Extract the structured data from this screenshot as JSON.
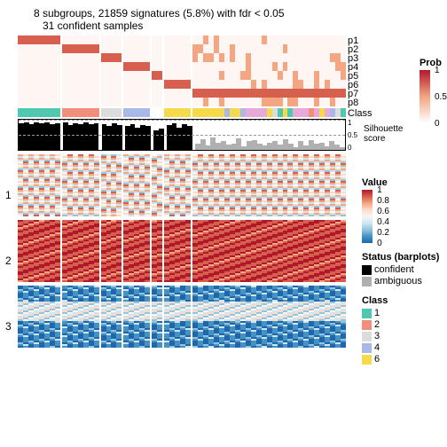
{
  "title": {
    "line1": "8 subgroups, 21859 signatures (5.8%) with fdr < 0.05",
    "line2": "31 confident samples"
  },
  "prob_rows": [
    "p1",
    "p2",
    "p3",
    "p4",
    "p5",
    "p6",
    "p7",
    "p8"
  ],
  "class_label": "Class",
  "silhouette_label": "Silhouette\nscore",
  "silhouette_ticks": [
    "1",
    "0.5",
    "0"
  ],
  "sections": [
    "1",
    "2",
    "3"
  ],
  "groups": [
    {
      "n": 8,
      "class_color": "#4ec9b0",
      "sil_color": "#000000",
      "sil_heights": [
        0.88,
        0.92,
        0.85,
        0.9,
        0.87,
        0.91,
        0.86,
        0.89
      ]
    },
    {
      "n": 7,
      "class_color": "#f28e7a",
      "sil_color": "#000000",
      "sil_heights": [
        0.9,
        0.82,
        0.88,
        0.85,
        0.91,
        0.84,
        0.87
      ]
    },
    {
      "n": 4,
      "class_color": "#dcdcdc",
      "sil_color": "#000000",
      "sil_heights": [
        0.85,
        0.8,
        0.88,
        0.82
      ]
    },
    {
      "n": 5,
      "class_color": "#a8b8e8",
      "sil_color": "#000000",
      "sil_heights": [
        0.78,
        0.84,
        0.75,
        0.82,
        0.8
      ]
    },
    {
      "n": 2,
      "class_color": "#ffffff",
      "sil_color": "#000000",
      "sil_heights": [
        0.65,
        0.7
      ]
    },
    {
      "n": 5,
      "class_color": "#f7d94c",
      "sil_color": "#000000",
      "sil_heights": [
        0.82,
        0.88,
        0.75,
        0.85,
        0.8
      ]
    },
    {
      "n": 29,
      "class_color": "mixed",
      "sil_color": "#b0b0b0",
      "sil_heights": [
        0.2,
        0.35,
        0.15,
        0.4,
        0.25,
        0.3,
        0.18,
        0.22,
        0.38,
        0.12,
        0.28,
        0.32,
        0.2,
        0.15,
        0.25,
        0.3,
        0.18,
        0.35,
        0.22,
        0.1,
        0.28,
        0.15,
        0.32,
        0.2,
        0.25,
        0.12,
        0.3,
        0.18,
        0.08
      ],
      "mixed_colors": [
        "#f7d94c",
        "#f7d94c",
        "#f7d94c",
        "#f7d94c",
        "#f7d94c",
        "#f7d94c",
        "#a8b8e8",
        "#f7d94c",
        "#f7d94c",
        "#a8b8e8",
        "#e8a8d8",
        "#e8a8d8",
        "#e8a8d8",
        "#e8a8d8",
        "#f7d94c",
        "#dcdcdc",
        "#4ec9b0",
        "#f7d94c",
        "#4ec9b0",
        "#e8a8d8",
        "#e8a8d8",
        "#e8a8d8",
        "#f28e7a",
        "#e8a8d8",
        "#f7d94c",
        "#e8a8d8",
        "#a8b8e8",
        "#dcdcdc",
        "#4ec9b0"
      ]
    }
  ],
  "value_legend": {
    "title": "Value",
    "ticks": [
      "1",
      "0.8",
      "0.6",
      "0.4",
      "0.2",
      "0"
    ],
    "gradient": [
      "#b2182b",
      "#d6604d",
      "#f4a582",
      "#fddbc7",
      "#f7f7f7",
      "#d1e5f0",
      "#92c5de",
      "#4393c3",
      "#2166ac"
    ]
  },
  "prob_legend": {
    "title": "Prob",
    "ticks": [
      "1",
      "0.5",
      "0"
    ],
    "gradient": [
      "#b2182b",
      "#f4a582",
      "#ffffff"
    ]
  },
  "status_legend": {
    "title": "Status (barplots)",
    "items": [
      {
        "color": "#000000",
        "label": "confident"
      },
      {
        "color": "#b0b0b0",
        "label": "ambiguous"
      }
    ]
  },
  "class_legend": {
    "title": "Class",
    "items": [
      {
        "color": "#4ec9b0",
        "label": "1"
      },
      {
        "color": "#f28e7a",
        "label": "2"
      },
      {
        "color": "#dcdcdc",
        "label": "3"
      },
      {
        "color": "#a8b8e8",
        "label": "4"
      },
      {
        "color": "#f7d94c",
        "label": "6"
      }
    ]
  },
  "section_palettes": {
    "1": [
      "#f4a582",
      "#fddbc7",
      "#f7f7f7",
      "#d1e5f0",
      "#92c5de",
      "#fddbc7",
      "#f4a582",
      "#d6604d",
      "#f7f7f7",
      "#d1e5f0"
    ],
    "2": [
      "#b2182b",
      "#d6604d",
      "#d6604d",
      "#b2182b",
      "#f4a582",
      "#d6604d",
      "#b2182b",
      "#d6604d",
      "#d6604d",
      "#b2182b"
    ],
    "3": [
      "#2166ac",
      "#4393c3",
      "#2166ac",
      "#4393c3",
      "#92c5de",
      "#2166ac",
      "#4393c3",
      "#d1e5f0",
      "#2166ac",
      "#4393c3"
    ]
  },
  "heatmap_rows_per_section": 35,
  "colors": {
    "white": "#ffffff"
  }
}
